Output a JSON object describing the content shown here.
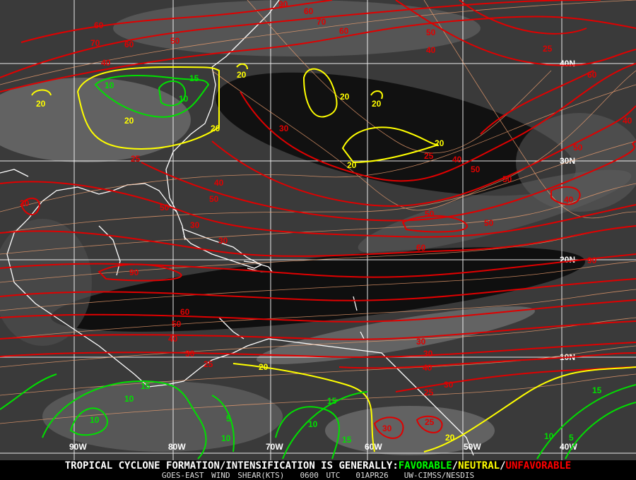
{
  "product": {
    "headline": "TROPICAL CYCLONE FORMATION/INTENSIFICATION IS GENERALLY:",
    "favorable": "FAVORABLE",
    "neutral": "NEUTRAL",
    "unfavorable": "UNFAVORABLE",
    "separator": "/",
    "source": "GOES-EAST WIND SHEAR(KTS)",
    "time": "0600 UTC",
    "date": "01APR26",
    "credit": "UW-CIMSS/NESDIS"
  },
  "colors": {
    "favorable": "#00e000",
    "neutral": "#ffff00",
    "unfavorable": "#e00000",
    "streamlines": "#f0a070",
    "coastlines": "#ffffff",
    "grid": "#ffffff"
  },
  "grid": {
    "latitudes": [
      "40N",
      "30N",
      "20N",
      "10N"
    ],
    "longitudes": [
      "90W",
      "80W",
      "70W",
      "60W",
      "50W",
      "40W"
    ]
  },
  "contours": {
    "red": [
      "90",
      "60",
      "70",
      "60",
      "60",
      "70",
      "60",
      "50",
      "40",
      "50",
      "40",
      "25",
      "60",
      "40",
      "30",
      "25",
      "40",
      "50",
      "50",
      "50",
      "25",
      "40",
      "50",
      "40",
      "30",
      "50",
      "50",
      "30",
      "50",
      "30",
      "60",
      "90",
      "90",
      "60",
      "50",
      "40",
      "30",
      "30",
      "40",
      "30",
      "25",
      "25",
      "30",
      "30",
      "25"
    ],
    "yellow": [
      "20",
      "20",
      "20",
      "20",
      "20",
      "20",
      "20",
      "20",
      "20",
      "20"
    ],
    "green": [
      "10",
      "10",
      "15",
      "10",
      "15",
      "10",
      "5",
      "10",
      "15",
      "10",
      "15",
      "15",
      "10",
      "5"
    ]
  }
}
